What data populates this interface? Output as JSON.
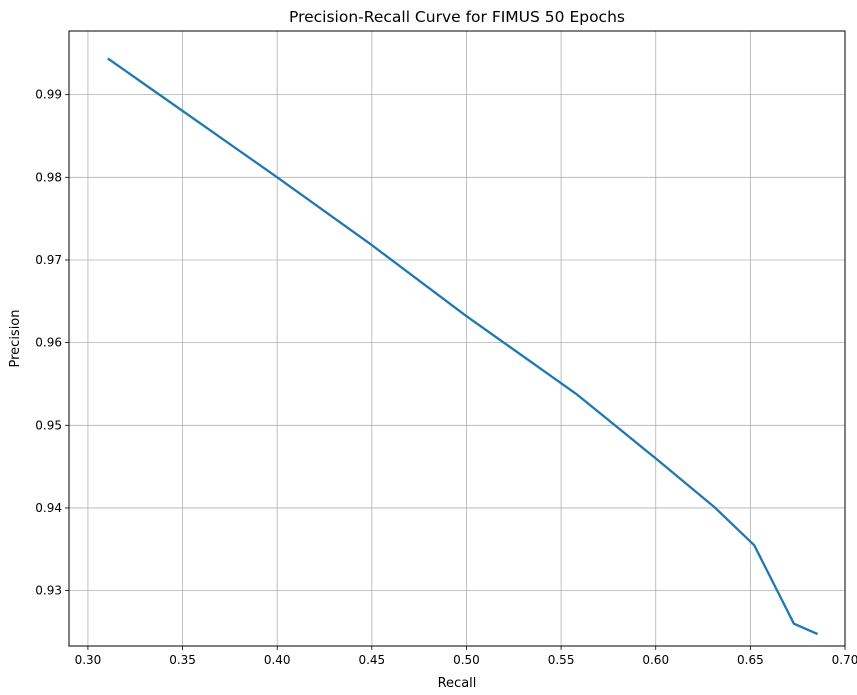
{
  "chart_data": {
    "type": "line",
    "title": "Precision-Recall Curve for FIMUS 50 Epochs",
    "xlabel": "Recall",
    "ylabel": "Precision",
    "xlim": [
      0.29,
      0.7
    ],
    "ylim": [
      0.9233,
      0.9977
    ],
    "xticks": [
      0.3,
      0.35,
      0.4,
      0.45,
      0.5,
      0.55,
      0.6,
      0.65,
      0.7
    ],
    "xtick_labels": [
      "0.30",
      "0.35",
      "0.40",
      "0.45",
      "0.50",
      "0.55",
      "0.60",
      "0.65",
      "0.70"
    ],
    "yticks": [
      0.93,
      0.94,
      0.95,
      0.96,
      0.97,
      0.98,
      0.99
    ],
    "ytick_labels": [
      "0.93",
      "0.94",
      "0.95",
      "0.96",
      "0.97",
      "0.98",
      "0.99"
    ],
    "grid": true,
    "series": [
      {
        "color": "#1f77b4",
        "x": [
          0.311,
          0.4,
          0.45,
          0.5,
          0.558,
          0.6,
          0.631,
          0.652,
          0.673,
          0.685
        ],
        "y": [
          0.9943,
          0.98,
          0.9718,
          0.9632,
          0.9538,
          0.946,
          0.9401,
          0.9355,
          0.926,
          0.9248
        ]
      }
    ]
  }
}
